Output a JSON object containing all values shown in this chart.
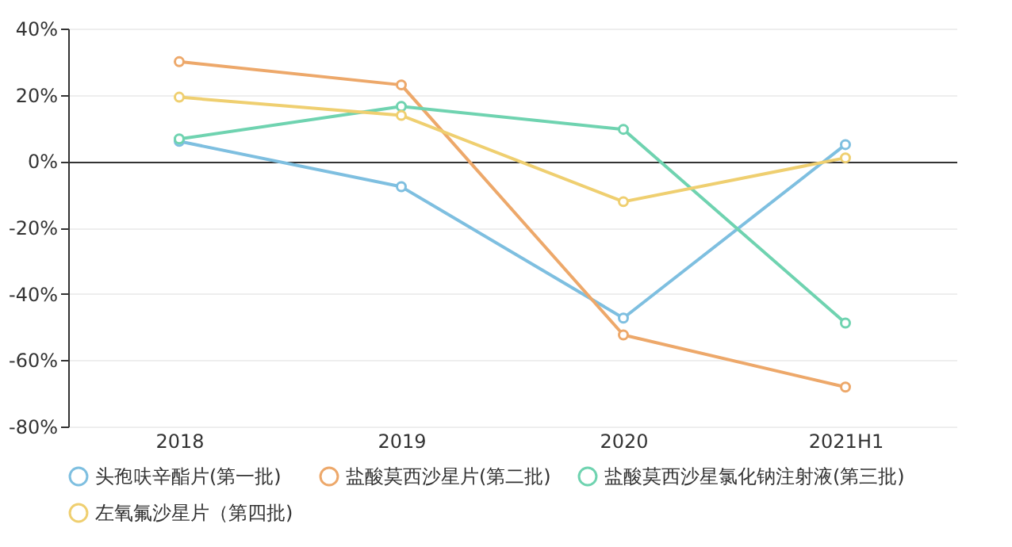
{
  "chart_data": {
    "type": "line",
    "categories": [
      "2018",
      "2019",
      "2020",
      "2021H1"
    ],
    "series": [
      {
        "name": "头孢呋辛酯片(第一批)",
        "color": "#7ebfe0",
        "values": [
          6,
          -7.7,
          -47.3,
          5
        ]
      },
      {
        "name": "盐酸莫西沙星片(第二批)",
        "color": "#eda86a",
        "values": [
          30,
          23,
          -52.4,
          -68.1
        ]
      },
      {
        "name": "盐酸莫西沙星氯化钠注射液(第三批)",
        "color": "#6fd3b0",
        "values": [
          6.7,
          16.5,
          9.6,
          -48.8
        ]
      },
      {
        "name": "左氧氟沙星片（第四批)",
        "color": "#efcf70",
        "values": [
          19.3,
          13.8,
          -12.2,
          1
        ]
      }
    ],
    "ylim": [
      -80,
      40
    ],
    "yticks": [
      {
        "value": -80,
        "label": "-80%"
      },
      {
        "value": -60,
        "label": "-60%"
      },
      {
        "value": -40,
        "label": "-40%"
      },
      {
        "value": -20,
        "label": "-20%"
      },
      {
        "value": 0,
        "label": "0%"
      },
      {
        "value": 20,
        "label": "20%"
      },
      {
        "value": 40,
        "label": "40%"
      }
    ],
    "grid": "y",
    "legend": "bottom",
    "marker": "circle",
    "line_style": "solid"
  }
}
